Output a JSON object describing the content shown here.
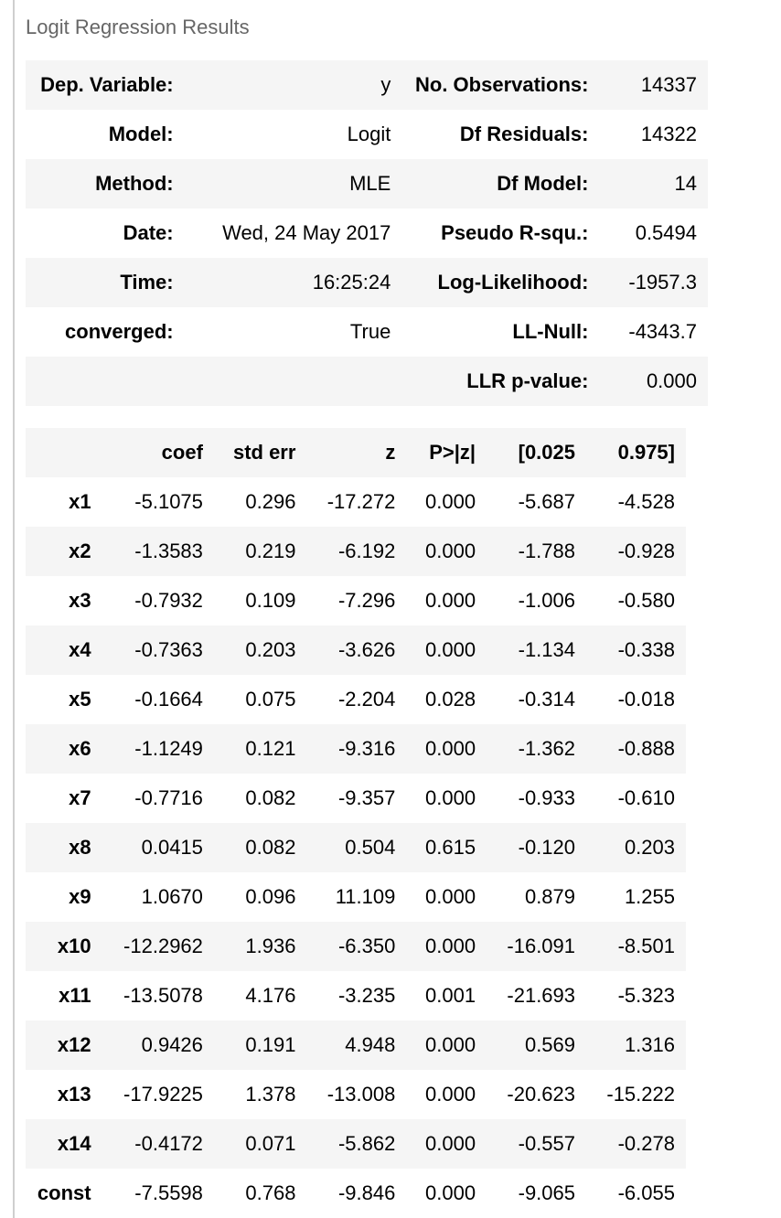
{
  "caption": "Logit Regression Results",
  "summary": [
    {
      "label1": "Dep. Variable:",
      "value1": "y",
      "label2": "No. Observations:",
      "value2": "14337"
    },
    {
      "label1": "Model:",
      "value1": "Logit",
      "label2": "Df Residuals:",
      "value2": "14322"
    },
    {
      "label1": "Method:",
      "value1": "MLE",
      "label2": "Df Model:",
      "value2": "14"
    },
    {
      "label1": "Date:",
      "value1": "Wed, 24 May 2017",
      "label2": "Pseudo R-squ.:",
      "value2": "0.5494"
    },
    {
      "label1": "Time:",
      "value1": "16:25:24",
      "label2": "Log-Likelihood:",
      "value2": "-1957.3"
    },
    {
      "label1": "converged:",
      "value1": "True",
      "label2": "LL-Null:",
      "value2": "-4343.7"
    },
    {
      "label1": "",
      "value1": "",
      "label2": "LLR p-value:",
      "value2": "0.000"
    }
  ],
  "coef_headers": [
    "",
    "coef",
    "std err",
    "z",
    "P>|z|",
    "[0.025",
    "0.975]"
  ],
  "coef_rows": [
    [
      "x1",
      "-5.1075",
      "0.296",
      "-17.272",
      "0.000",
      "-5.687",
      "-4.528"
    ],
    [
      "x2",
      "-1.3583",
      "0.219",
      "-6.192",
      "0.000",
      "-1.788",
      "-0.928"
    ],
    [
      "x3",
      "-0.7932",
      "0.109",
      "-7.296",
      "0.000",
      "-1.006",
      "-0.580"
    ],
    [
      "x4",
      "-0.7363",
      "0.203",
      "-3.626",
      "0.000",
      "-1.134",
      "-0.338"
    ],
    [
      "x5",
      "-0.1664",
      "0.075",
      "-2.204",
      "0.028",
      "-0.314",
      "-0.018"
    ],
    [
      "x6",
      "-1.1249",
      "0.121",
      "-9.316",
      "0.000",
      "-1.362",
      "-0.888"
    ],
    [
      "x7",
      "-0.7716",
      "0.082",
      "-9.357",
      "0.000",
      "-0.933",
      "-0.610"
    ],
    [
      "x8",
      "0.0415",
      "0.082",
      "0.504",
      "0.615",
      "-0.120",
      "0.203"
    ],
    [
      "x9",
      "1.0670",
      "0.096",
      "11.109",
      "0.000",
      "0.879",
      "1.255"
    ],
    [
      "x10",
      "-12.2962",
      "1.936",
      "-6.350",
      "0.000",
      "-16.091",
      "-8.501"
    ],
    [
      "x11",
      "-13.5078",
      "4.176",
      "-3.235",
      "0.001",
      "-21.693",
      "-5.323"
    ],
    [
      "x12",
      "0.9426",
      "0.191",
      "4.948",
      "0.000",
      "0.569",
      "1.316"
    ],
    [
      "x13",
      "-17.9225",
      "1.378",
      "-13.008",
      "0.000",
      "-20.623",
      "-15.222"
    ],
    [
      "x14",
      "-0.4172",
      "0.071",
      "-5.862",
      "0.000",
      "-0.557",
      "-0.278"
    ],
    [
      "const",
      "-7.5598",
      "0.768",
      "-9.846",
      "0.000",
      "-9.065",
      "-6.055"
    ]
  ]
}
